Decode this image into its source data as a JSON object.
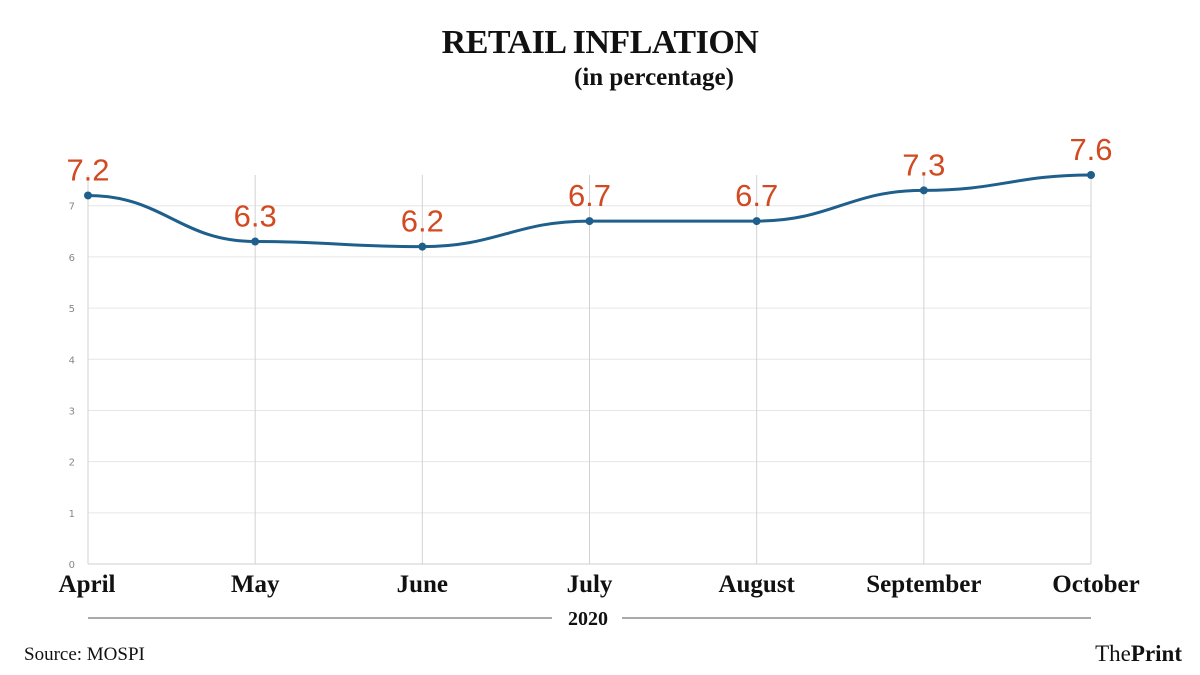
{
  "chart_data": {
    "type": "line",
    "title": "RETAIL INFLATION",
    "subtitle": "(in percentage)",
    "categories": [
      "April",
      "May",
      "June",
      "July",
      "August",
      "September",
      "October"
    ],
    "values": [
      7.2,
      6.3,
      6.2,
      6.7,
      6.7,
      7.3,
      7.6
    ],
    "data_labels": [
      "7.2",
      "6.3",
      "6.2",
      "6.7",
      "6.7",
      "7.3",
      "7.6"
    ],
    "xlabel": "2020",
    "ylabel": "",
    "ylim": [
      0,
      7.6
    ],
    "yticks": [
      0,
      1,
      2,
      3,
      4,
      5,
      6,
      7
    ],
    "grid": true,
    "series_color": "#1f5f8b",
    "label_color": "#d24a22"
  },
  "footer": {
    "source": "Source: MOSPI",
    "brand_prefix": "The",
    "brand_name": "Print"
  }
}
